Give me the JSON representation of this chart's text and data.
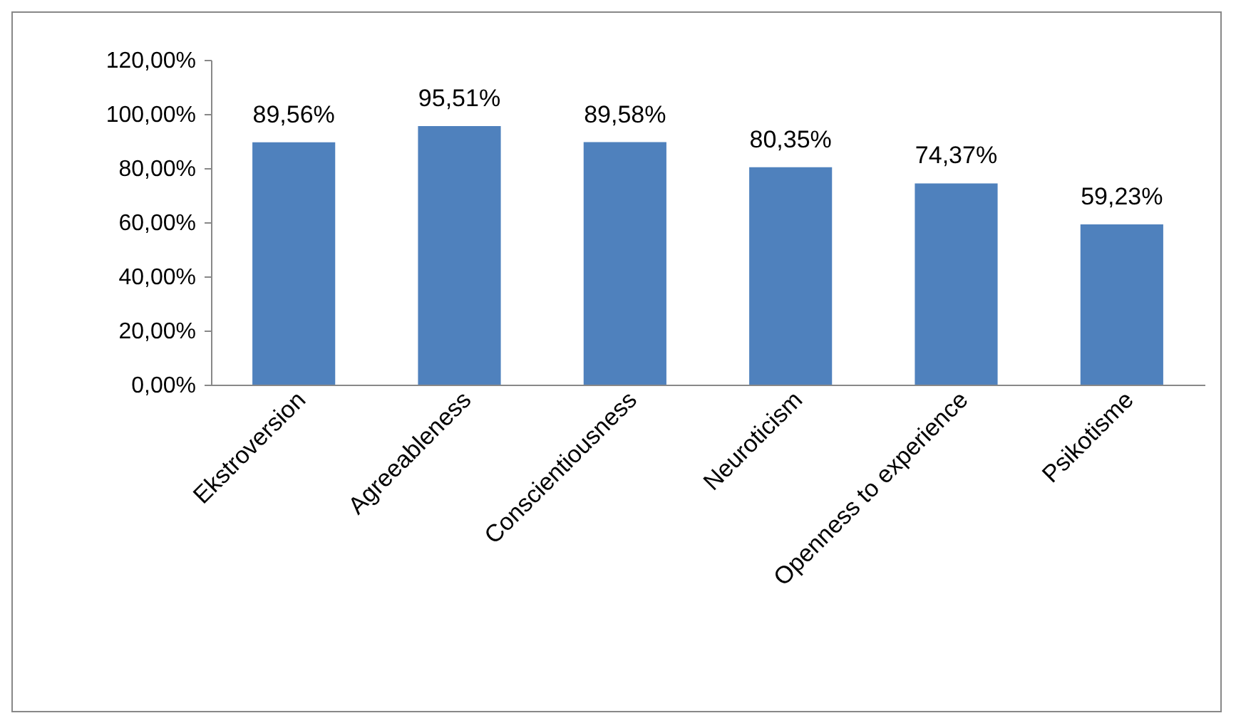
{
  "chart_data": {
    "type": "bar",
    "categories": [
      "Ekstroversion",
      "Agreeableness",
      "Conscientiousness",
      "Neuroticism",
      "Openness to experience",
      "Psikotisme"
    ],
    "values": [
      89.56,
      95.51,
      89.58,
      80.35,
      74.37,
      59.23
    ],
    "value_labels": [
      "89,56%",
      "95,51%",
      "89,58%",
      "80,35%",
      "74,37%",
      "59,23%"
    ],
    "color": "#4f81bd",
    "ylim": [
      0,
      120
    ],
    "yticks": [
      {
        "value": 0,
        "label": "0,00%"
      },
      {
        "value": 20,
        "label": "20,00%"
      },
      {
        "value": 40,
        "label": "40,00%"
      },
      {
        "value": 60,
        "label": "60,00%"
      },
      {
        "value": 80,
        "label": "80,00%"
      },
      {
        "value": 100,
        "label": "100,00%"
      },
      {
        "value": 120,
        "label": "120,00%"
      }
    ]
  }
}
